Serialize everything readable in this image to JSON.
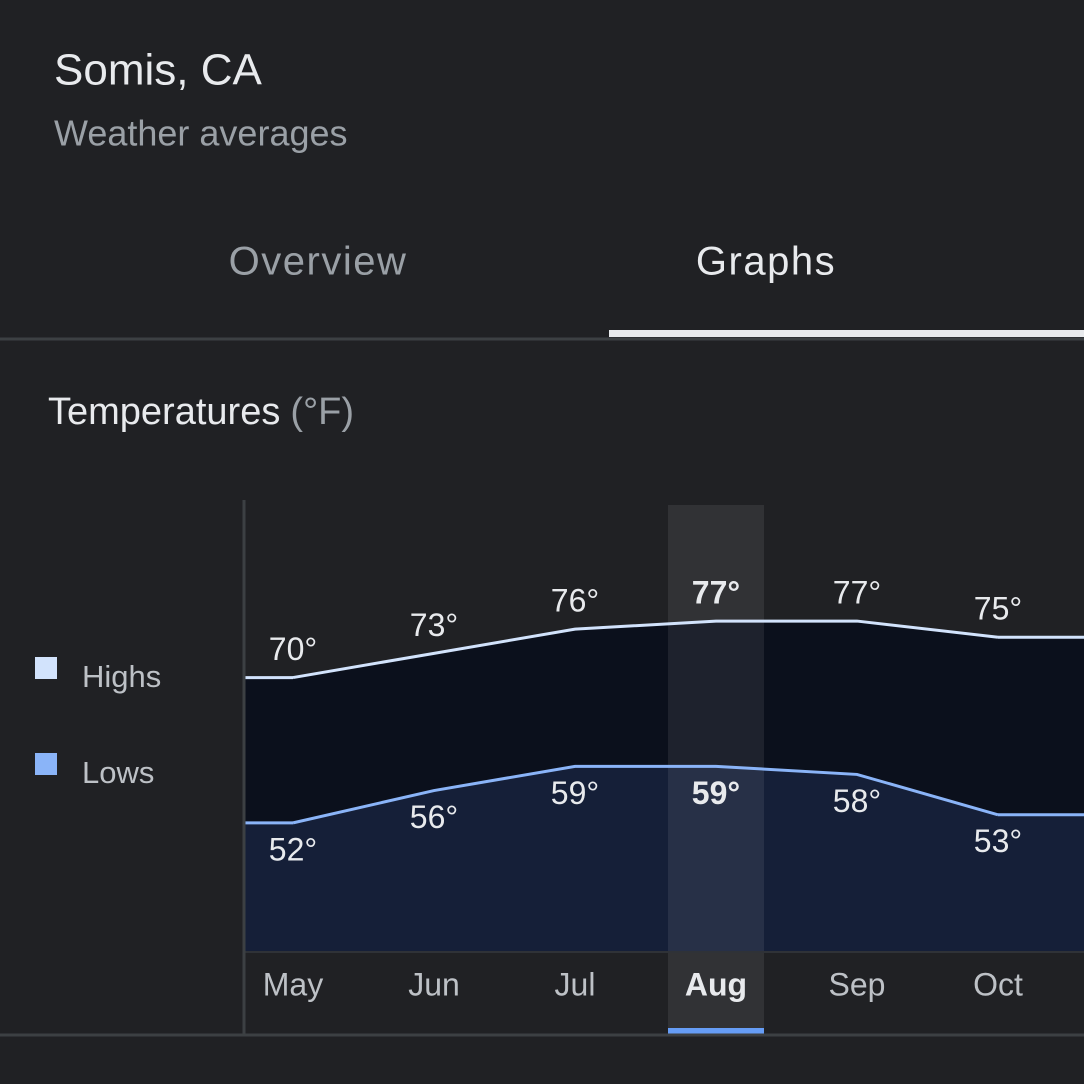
{
  "header": {
    "title": "Somis, CA",
    "subtitle": "Weather averages"
  },
  "tabs": {
    "items": [
      "Overview",
      "Graphs"
    ],
    "active": "Graphs"
  },
  "chart_data": {
    "type": "area",
    "title": "Temperatures",
    "unit": "(°F)",
    "categories": [
      "May",
      "Jun",
      "Jul",
      "Aug",
      "Sep",
      "Oct"
    ],
    "selected": "Aug",
    "ylim": [
      36,
      92
    ],
    "series": [
      {
        "name": "Highs",
        "color": "#d2e3fc",
        "fill": "#0b101c",
        "label_position": "above",
        "values": [
          70,
          73,
          76,
          77,
          77,
          75
        ],
        "value_labels": [
          "70°",
          "73°",
          "76°",
          "77°",
          "77°",
          "75°"
        ]
      },
      {
        "name": "Lows",
        "color": "#8ab4f8",
        "fill": "#151f38",
        "label_position": "below",
        "values": [
          52,
          56,
          59,
          59,
          58,
          53
        ],
        "value_labels": [
          "52°",
          "56°",
          "59°",
          "59°",
          "58°",
          "53°"
        ]
      }
    ]
  }
}
